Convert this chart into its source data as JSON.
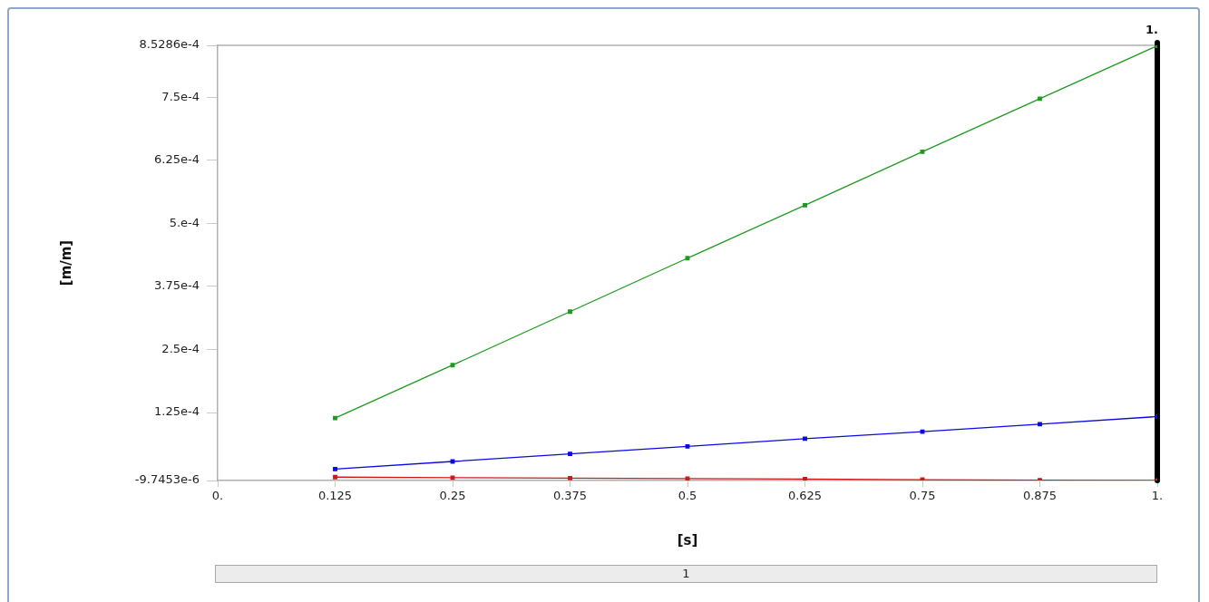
{
  "chart_data": {
    "type": "line",
    "xlabel": "[s]",
    "ylabel": "[m/m]",
    "x": [
      0.125,
      0.25,
      0.375,
      0.5,
      0.625,
      0.75,
      0.875,
      1
    ],
    "series": [
      {
        "color": "#1e9a1e",
        "values": [
          0.000114,
          0.000219,
          0.000325,
          0.000431,
          0.000536,
          0.000642,
          0.000747,
          0.000852
        ]
      },
      {
        "color": "#0a0ae0",
        "values": [
          1.3e-05,
          2.8e-05,
          4.3e-05,
          5.8e-05,
          7.3e-05,
          8.7e-05,
          0.000102,
          0.000117
        ]
      },
      {
        "color": "#cc1a1a",
        "values": [
          -3e-06,
          -4e-06,
          -5e-06,
          -6e-06,
          -7e-06,
          -8e-06,
          -9e-06,
          -9.7e-06
        ]
      }
    ],
    "xlim": [
      0,
      1
    ],
    "xticks": [
      {
        "value": 0,
        "label": "0."
      },
      0.125,
      0.25,
      0.375,
      0.5,
      0.625,
      0.75,
      0.875,
      {
        "value": 1,
        "label": "1."
      }
    ],
    "ylim": [
      -9.7453e-06,
      0.00085286
    ],
    "yticks": [
      {
        "value": -9.7453e-06,
        "label": "-9.7453e-6"
      },
      {
        "value": 0.000125,
        "label": "1.25e-4"
      },
      {
        "value": 0.00025,
        "label": "2.5e-4"
      },
      {
        "value": 0.000375,
        "label": "3.75e-4"
      },
      {
        "value": 0.0005,
        "label": "5.e-4"
      },
      {
        "value": 0.000625,
        "label": "6.25e-4"
      },
      {
        "value": 0.00075,
        "label": "7.5e-4"
      },
      {
        "value": 0.00085286,
        "label": "8.5286e-4"
      }
    ],
    "ref_lines": [
      {
        "axis": "x",
        "value": 1,
        "label": "1.",
        "color": "#000000"
      }
    ],
    "annotations": [
      "1"
    ],
    "grid": false,
    "legend": false,
    "marker": "square",
    "line_style": "solid"
  }
}
